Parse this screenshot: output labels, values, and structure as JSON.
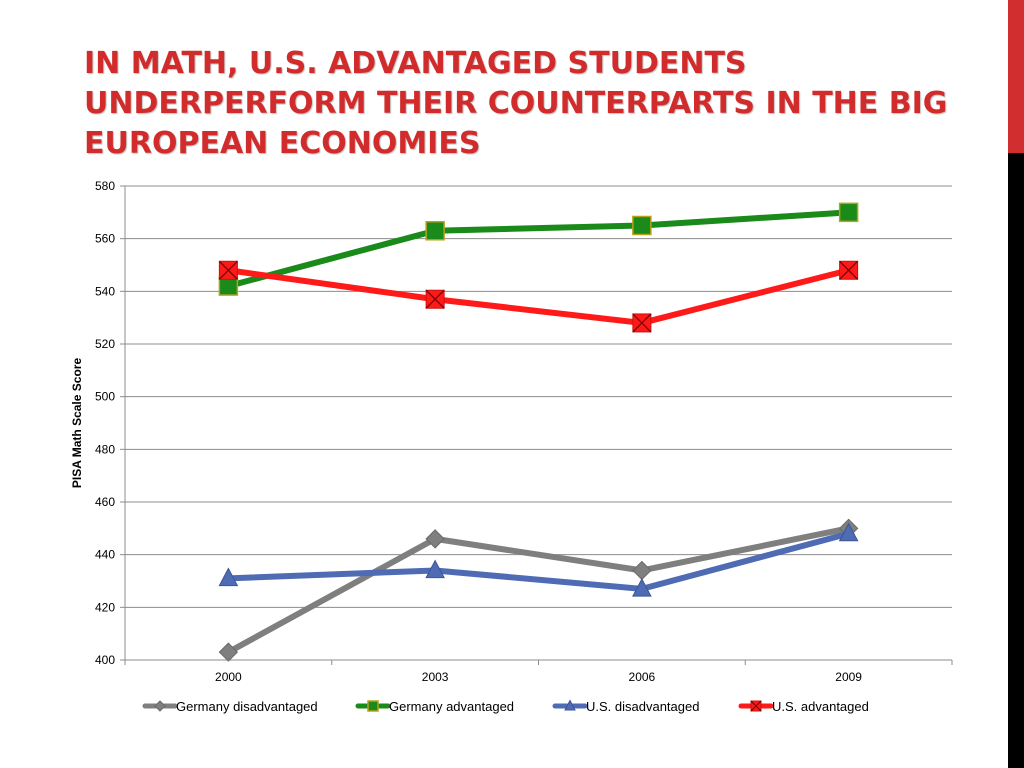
{
  "slide": {
    "title": "IN MATH, U.S. ADVANTAGED STUDENTS UNDERPERFORM THEIR COUNTERPARTS IN THE BIG EUROPEAN ECONOMIES",
    "title_color": "#d22b2b",
    "accent_colors": [
      "#d12f2f",
      "#000000"
    ]
  },
  "chart_data": {
    "type": "line",
    "title": "",
    "xlabel": "",
    "ylabel": "PISA Math Scale Score",
    "ylim": [
      400,
      580
    ],
    "yticks": [
      400,
      420,
      440,
      460,
      480,
      500,
      520,
      540,
      560,
      580
    ],
    "grid": true,
    "legend_position": "bottom",
    "categories": [
      "2000",
      "2003",
      "2006",
      "2009"
    ],
    "series": [
      {
        "name": "Germany disadvantaged",
        "values": [
          403,
          446,
          434,
          450
        ],
        "color": "#7f7f7f",
        "marker": "diamond"
      },
      {
        "name": "Germany advantaged",
        "values": [
          542,
          563,
          565,
          570
        ],
        "color": "#1a8a1a",
        "marker": "square"
      },
      {
        "name": "U.S. disadvantaged",
        "values": [
          431,
          434,
          427,
          448
        ],
        "color": "#4e6bb4",
        "marker": "triangle"
      },
      {
        "name": "U.S. advantaged",
        "values": [
          548,
          537,
          528,
          548
        ],
        "color": "#ff1a1a",
        "marker": "x-square"
      }
    ]
  }
}
